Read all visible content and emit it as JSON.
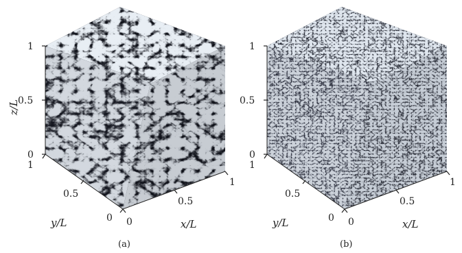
{
  "panels": [
    {
      "id": "a",
      "caption": "(a)",
      "ticks": {
        "z": [
          "0",
          "0.5",
          "1"
        ],
        "y": [
          "0",
          "0.5",
          "1"
        ],
        "x": [
          "0",
          "0.5",
          "1"
        ]
      },
      "axis_labels": {
        "z": "z/L",
        "y": "y/L",
        "x": "x/L"
      },
      "texture": "coarse turbulent vorticity field",
      "colors": {
        "dark": "#0e1018",
        "mid": "#4a5468",
        "light": "#e8eef4"
      }
    },
    {
      "id": "b",
      "caption": "(b)",
      "ticks": {
        "z": [
          "0",
          "0.5",
          "1"
        ],
        "y": [
          "0",
          "0.5",
          "1"
        ],
        "x": [
          "0",
          "0.5",
          "1"
        ]
      },
      "axis_labels": {
        "z": "z/L",
        "y": "y/L",
        "x": "x/L"
      },
      "texture": "fine turbulent vorticity field",
      "colors": {
        "dark": "#1a1d28",
        "mid": "#5a6478",
        "light": "#dfe6ee"
      }
    }
  ]
}
